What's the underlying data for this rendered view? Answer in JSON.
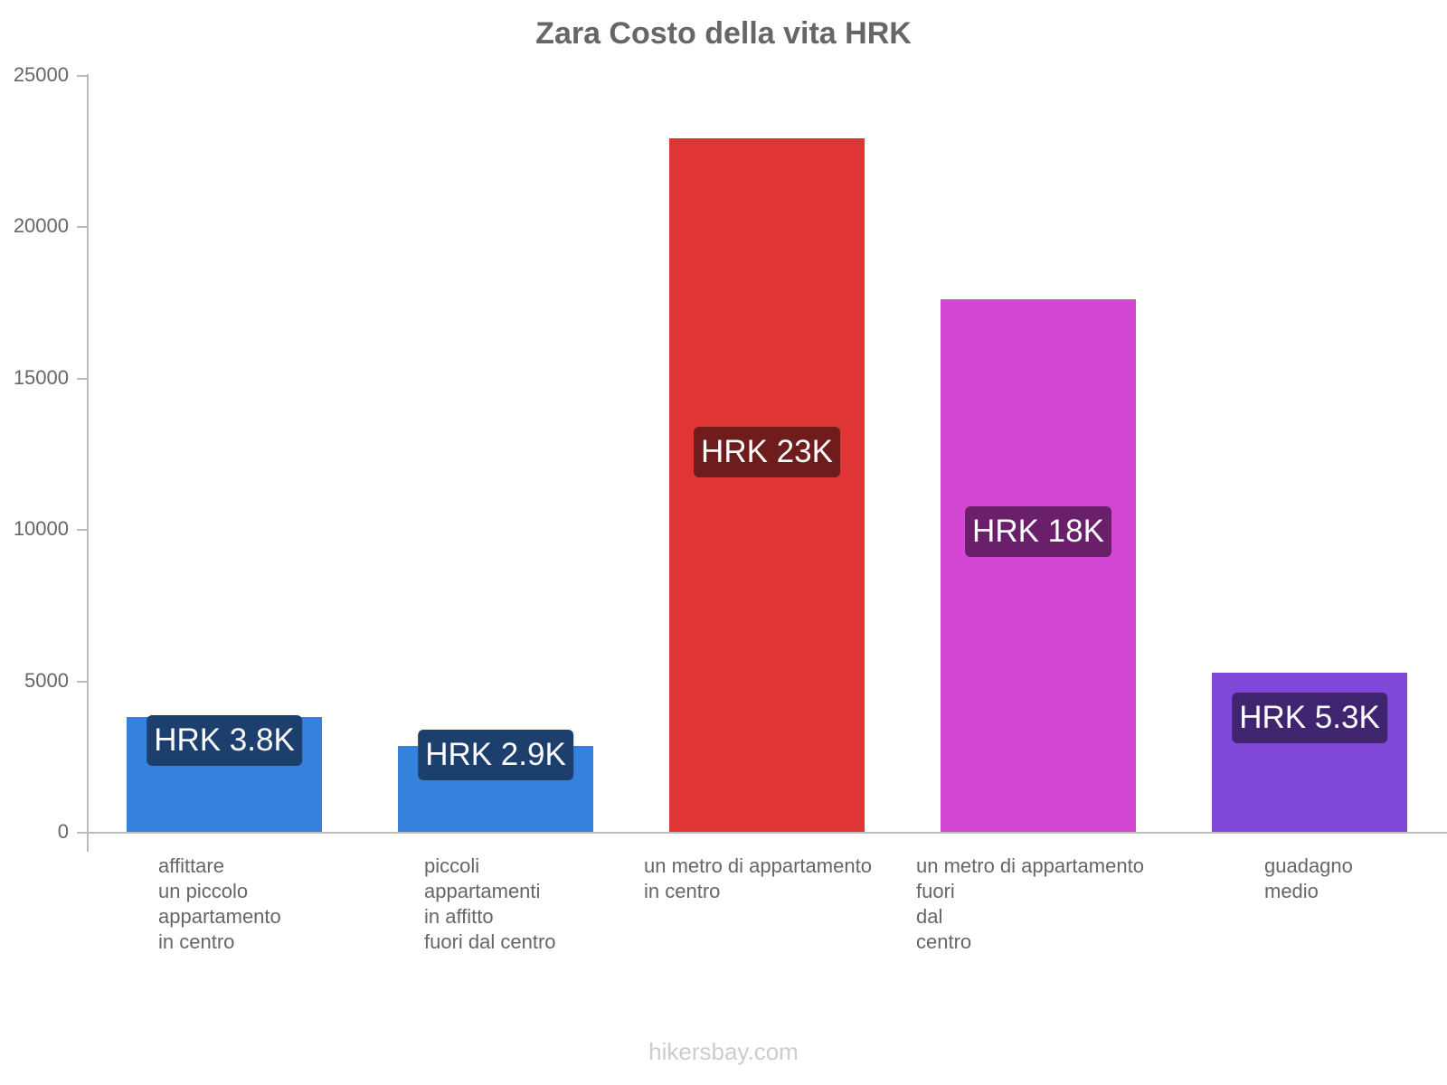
{
  "chart_data": {
    "type": "bar",
    "title": "Zara Costo della vita HRK",
    "xlabel": "",
    "ylabel": "",
    "ylim": [
      0,
      25000
    ],
    "yticks": [
      0,
      5000,
      10000,
      15000,
      20000,
      25000
    ],
    "grid": false,
    "legend": null,
    "categories": [
      "affittare un piccolo appartamento in centro",
      "piccoli appartamenti in affitto fuori dal centro",
      "un metro di appartamento in centro",
      "un metro di appartamento fuori dal centro",
      "guadagno medio"
    ],
    "values": [
      3800,
      2850,
      22900,
      17600,
      5250
    ],
    "data_labels": [
      "HRK 3.8K",
      "HRK 2.9K",
      "HRK 23K",
      "HRK 18K",
      "HRK 5.3K"
    ],
    "colors": [
      "#3582dc",
      "#3582dc",
      "#e03535",
      "#d447d4",
      "#8048d6"
    ],
    "label_colors": [
      "#1d3f6e",
      "#1d3f6e",
      "#6e1c1c",
      "#6a1f6a",
      "#3f2570"
    ]
  },
  "title": "Zara Costo della vita HRK",
  "yticks": [
    "0",
    "5000",
    "10000",
    "15000",
    "20000",
    "25000"
  ],
  "xlabels": [
    "affittare\nun piccolo\nappartamento\nin centro",
    "piccoli\nappartamenti\nin affitto\nfuori dal centro",
    "un metro di appartamento\nin centro",
    "un metro di appartamento\nfuori\ndal\ncentro",
    "guadagno\nmedio"
  ],
  "footer": "hikersbay.com"
}
